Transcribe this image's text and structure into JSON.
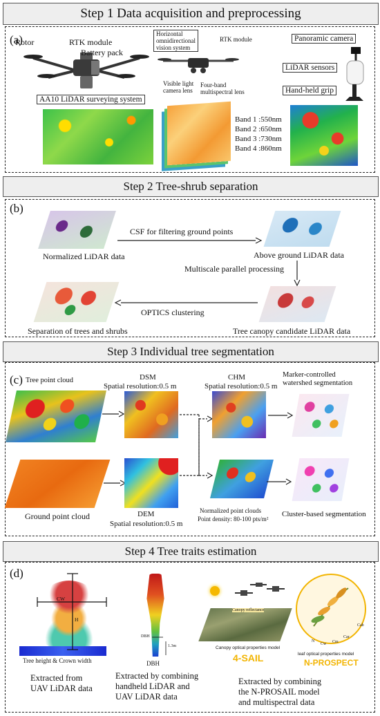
{
  "step1": {
    "title": "Step 1 Data acquisition and preprocessing",
    "sublabel": "(a)",
    "drone1": {
      "rotor": "Rotor",
      "rtk": "RTK module",
      "battery": "Battery pack",
      "system": "AA10 LiDAR surveying system"
    },
    "drone2": {
      "vision": "Horizontal\nomnidirectional\nvision system",
      "rtk": "RTK module",
      "visible": "Visible light\ncamera lens",
      "multispectral": "Four-band\nmultispectral lens"
    },
    "bands": [
      "Band 1 :550nm",
      "Band 2 :650nm",
      "Band 3 :730nm",
      "Band 4 :860nm"
    ],
    "handheld": {
      "panoramic": "Panoramic camera",
      "lidar": "LiDAR sensors",
      "grip": "Hand-held grip"
    }
  },
  "step2": {
    "title": "Step 2 Tree-shrub separation",
    "sublabel": "(b)",
    "normalized": "Normalized LiDAR data",
    "csf": "CSF for filtering ground points",
    "above": "Above ground LiDAR data",
    "multiscale": "Multiscale parallel processing",
    "canopy": "Tree canopy candidate LiDAR data",
    "optics": "OPTICS clustering",
    "separation": "Separation of trees and shrubs"
  },
  "step3": {
    "title": "Step 3 Individual tree segmentation",
    "sublabel": "(c)",
    "tree_cloud": "Tree point cloud",
    "dsm_title": "DSM",
    "dsm_res": "Spatial resolution:0.5 m",
    "chm_title": "CHM",
    "chm_res": "Spatial resolution:0.5 m",
    "marker": "Marker-controlled\nwatershed segmentation",
    "ground_cloud": "Ground point cloud",
    "dem_title": "DEM",
    "dem_res": "Spatial resolution:0.5 m",
    "norm_clouds": "Normalized point clouds",
    "density": "Point density: 80-100 pts/m²",
    "cluster": "Cluster-based segmentation"
  },
  "step4": {
    "title": "Step 4 Tree traits estimation",
    "sublabel": "(d)",
    "cw": "CW",
    "h": "H",
    "height_crown": "Tree height & Crown width",
    "dbh": "DBH",
    "dbh_small": "DBH",
    "h13": "1.3m",
    "canopy_reflectance": "Canopy reflectance",
    "canopy_model": "Canopy optical properties model",
    "sail": "4-SAIL",
    "leaf_model": "leaf optical properties model",
    "prospect": "N-PROSPECT",
    "pigments": [
      "Cab",
      "Car",
      "Cm",
      "Cw",
      "N"
    ],
    "extract1": "Extracted from\nUAV LiDAR data",
    "extract2": "Extracted by combining\nhandheld LiDAR and\nUAV LiDAR data",
    "extract3": "Extracted by combining\nthe N-PROSAIL model\nand multispectral data"
  }
}
